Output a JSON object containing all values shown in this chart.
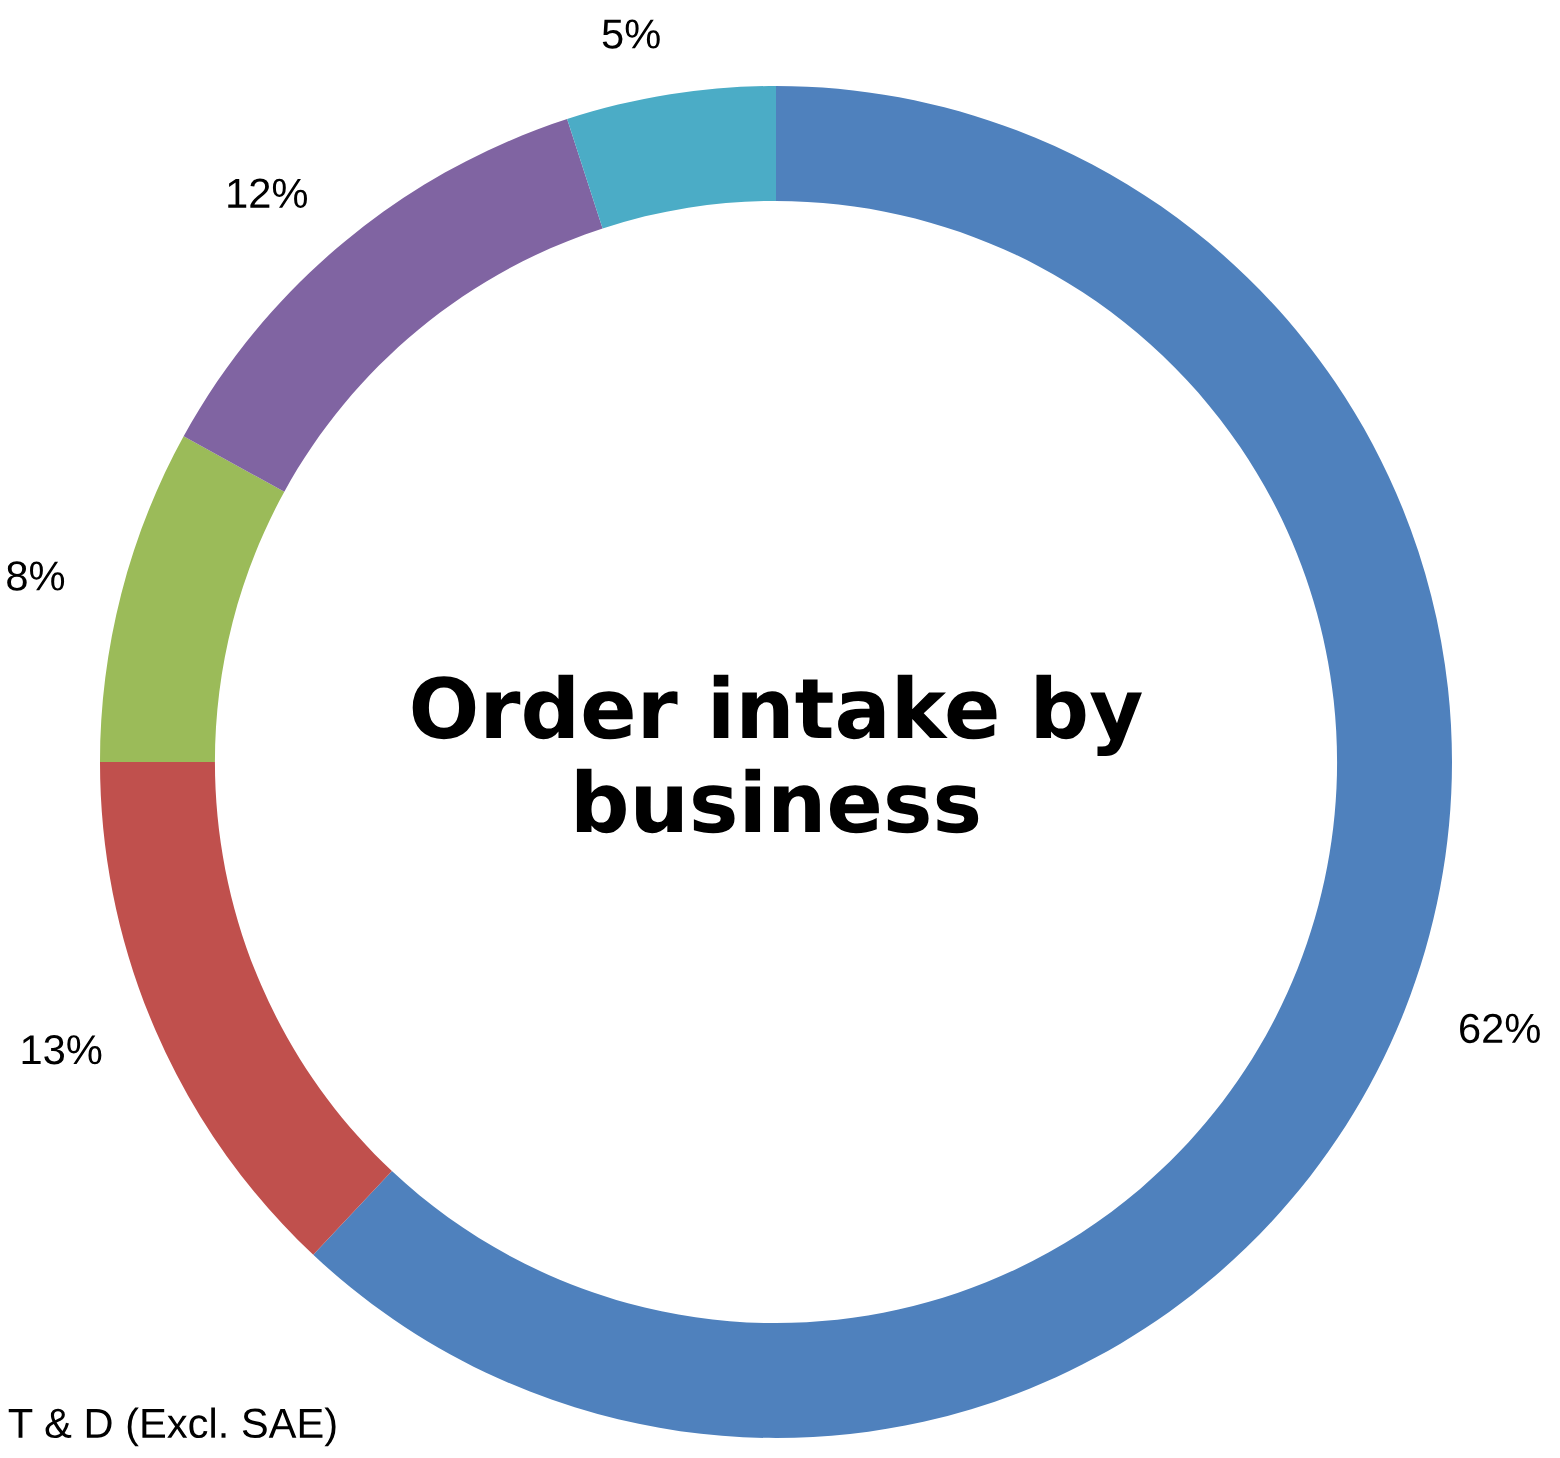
{
  "chart_data": {
    "type": "donut",
    "title": "Order intake by\nbusiness",
    "categories": [
      null,
      null,
      null,
      null,
      null
    ],
    "values": [
      62,
      13,
      8,
      12,
      5
    ],
    "colors": [
      "#4f81bd",
      "#c0504d",
      "#9bbb59",
      "#8064a2",
      "#4bacc6"
    ],
    "value_labels": [
      "62%",
      "13%",
      "8%",
      "12%",
      "5%"
    ],
    "annotations": [
      "T & D (Excl. SAE)"
    ]
  }
}
